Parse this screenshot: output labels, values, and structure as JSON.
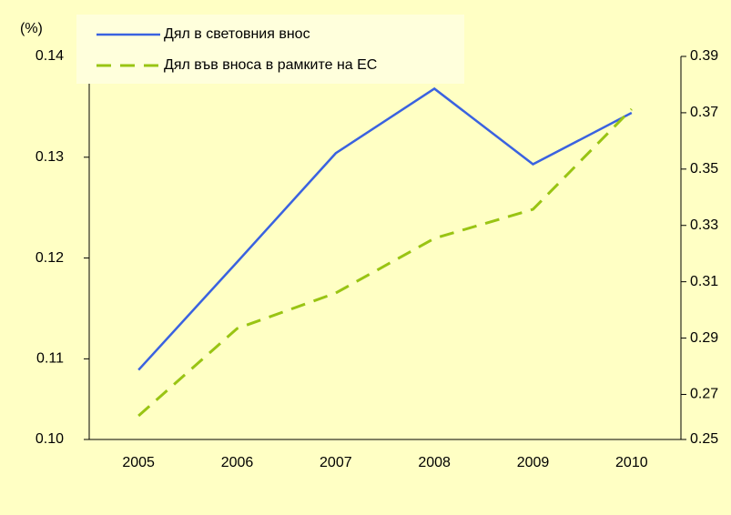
{
  "chart_data": {
    "type": "line",
    "y_axis_label": "(%)",
    "categories": [
      "2005",
      "2006",
      "2007",
      "2008",
      "2009",
      "2010"
    ],
    "series": [
      {
        "name": "Дял в световния внос",
        "color": "#3a62e0",
        "values": [
          0.1089,
          0.1196,
          0.1304,
          0.1368,
          0.1293,
          0.1344
        ]
      },
      {
        "name": "Дял във вноса в рамките на ЕС",
        "color": "#99c413",
        "dashed": true,
        "axis": "y2",
        "values": [
          0.2624,
          0.2934,
          0.306,
          0.3254,
          0.3357,
          0.3713
        ]
      }
    ],
    "ylim": [
      0.102,
      0.14
    ],
    "yticks": [
      {
        "value": 0.102,
        "label": "0.10"
      },
      0.11,
      0.12,
      0.13,
      0.14
    ],
    "y2lim": [
      0.254,
      0.39
    ],
    "y2ticks": [
      {
        "value": 0.254,
        "label": "0.25"
      },
      0.27,
      0.29,
      0.31,
      0.33,
      0.35,
      0.37,
      0.39
    ],
    "legend": "top-left"
  }
}
